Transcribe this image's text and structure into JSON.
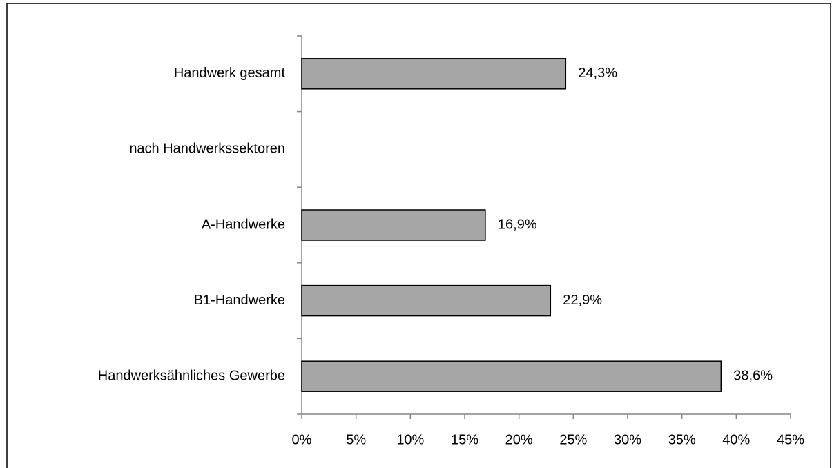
{
  "chart_data": {
    "type": "bar",
    "orientation": "horizontal",
    "categories": [
      "Handwerk gesamt",
      "nach Handwerkssektoren",
      "A-Handwerke",
      "B1-Handwerke",
      "Handwerksähnliches Gewerbe"
    ],
    "values": [
      24.3,
      null,
      16.9,
      22.9,
      38.6
    ],
    "value_labels": [
      "24,3%",
      null,
      "16,9%",
      "22,9%",
      "38,6%"
    ],
    "color": "#a6a6a6",
    "xlim": [
      0,
      45
    ],
    "xticks": [
      {
        "value": 0,
        "label": "0%"
      },
      {
        "value": 5,
        "label": "5%"
      },
      {
        "value": 10,
        "label": "10%"
      },
      {
        "value": 15,
        "label": "15%"
      },
      {
        "value": 20,
        "label": "20%"
      },
      {
        "value": 25,
        "label": "25%"
      },
      {
        "value": 30,
        "label": "30%"
      },
      {
        "value": 35,
        "label": "35%"
      },
      {
        "value": 40,
        "label": "40%"
      },
      {
        "value": 45,
        "label": "45%"
      }
    ],
    "grid": false
  }
}
